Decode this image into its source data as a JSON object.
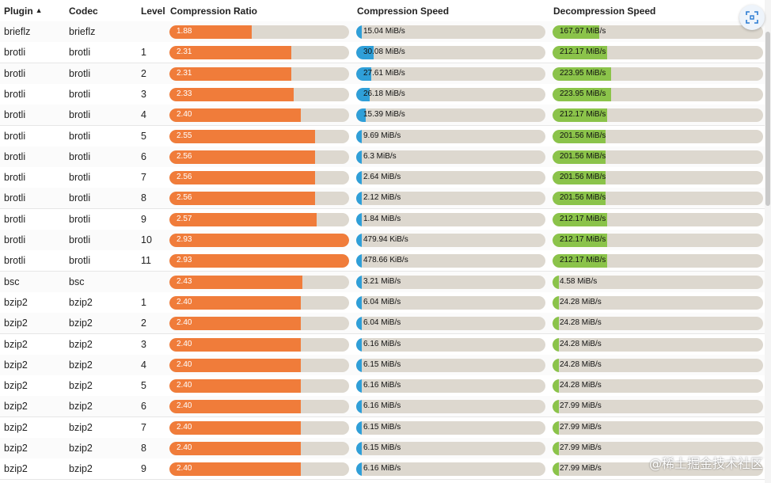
{
  "header": {
    "plugin": "Plugin",
    "codec": "Codec",
    "level": "Level",
    "ratio": "Compression Ratio",
    "cspeed": "Compression Speed",
    "dspeed": "Decompression Speed"
  },
  "colors": {
    "ratio": "#f07c3a",
    "cspeed": "#2f9fd8",
    "dspeed": "#8bc34a",
    "track": "#ddd8cf"
  },
  "rows": [
    {
      "plugin": "brieflz",
      "codec": "brieflz",
      "level": "",
      "ratio": "1.88",
      "ratio_frac": 0.46,
      "cspeed": "15.04 MiB/s",
      "cspeed_frac": 0.02,
      "dspeed": "167.97 MiB/s",
      "dspeed_frac": 0.22
    },
    {
      "plugin": "brotli",
      "codec": "brotli",
      "level": "1",
      "ratio": "2.31",
      "ratio_frac": 0.68,
      "cspeed": "30.08 MiB/s",
      "cspeed_frac": 0.09,
      "dspeed": "212.17 MiB/s",
      "dspeed_frac": 0.26
    },
    {
      "plugin": "brotli",
      "codec": "brotli",
      "level": "2",
      "ratio": "2.31",
      "ratio_frac": 0.68,
      "cspeed": "27.61 MiB/s",
      "cspeed_frac": 0.08,
      "dspeed": "223.95 MiB/s",
      "dspeed_frac": 0.28
    },
    {
      "plugin": "brotli",
      "codec": "brotli",
      "level": "3",
      "ratio": "2.33",
      "ratio_frac": 0.69,
      "cspeed": "26.18 MiB/s",
      "cspeed_frac": 0.07,
      "dspeed": "223.95 MiB/s",
      "dspeed_frac": 0.28
    },
    {
      "plugin": "brotli",
      "codec": "brotli",
      "level": "4",
      "ratio": "2.40",
      "ratio_frac": 0.73,
      "cspeed": "15.39 MiB/s",
      "cspeed_frac": 0.05,
      "dspeed": "212.17 MiB/s",
      "dspeed_frac": 0.26
    },
    {
      "plugin": "brotli",
      "codec": "brotli",
      "level": "5",
      "ratio": "2.55",
      "ratio_frac": 0.81,
      "cspeed": "9.69 MiB/s",
      "cspeed_frac": 0.02,
      "dspeed": "201.56 MiB/s",
      "dspeed_frac": 0.25
    },
    {
      "plugin": "brotli",
      "codec": "brotli",
      "level": "6",
      "ratio": "2.56",
      "ratio_frac": 0.81,
      "cspeed": "6.3 MiB/s",
      "cspeed_frac": 0.02,
      "dspeed": "201.56 MiB/s",
      "dspeed_frac": 0.25
    },
    {
      "plugin": "brotli",
      "codec": "brotli",
      "level": "7",
      "ratio": "2.56",
      "ratio_frac": 0.81,
      "cspeed": "2.64 MiB/s",
      "cspeed_frac": 0.01,
      "dspeed": "201.56 MiB/s",
      "dspeed_frac": 0.25
    },
    {
      "plugin": "brotli",
      "codec": "brotli",
      "level": "8",
      "ratio": "2.56",
      "ratio_frac": 0.81,
      "cspeed": "2.12 MiB/s",
      "cspeed_frac": 0.01,
      "dspeed": "201.56 MiB/s",
      "dspeed_frac": 0.25
    },
    {
      "plugin": "brotli",
      "codec": "brotli",
      "level": "9",
      "ratio": "2.57",
      "ratio_frac": 0.82,
      "cspeed": "1.84 MiB/s",
      "cspeed_frac": 0.01,
      "dspeed": "212.17 MiB/s",
      "dspeed_frac": 0.26
    },
    {
      "plugin": "brotli",
      "codec": "brotli",
      "level": "10",
      "ratio": "2.93",
      "ratio_frac": 1.0,
      "cspeed": "479.94 KiB/s",
      "cspeed_frac": 0.005,
      "dspeed": "212.17 MiB/s",
      "dspeed_frac": 0.26
    },
    {
      "plugin": "brotli",
      "codec": "brotli",
      "level": "11",
      "ratio": "2.93",
      "ratio_frac": 1.0,
      "cspeed": "478.66 KiB/s",
      "cspeed_frac": 0.005,
      "dspeed": "212.17 MiB/s",
      "dspeed_frac": 0.26
    },
    {
      "plugin": "bsc",
      "codec": "bsc",
      "level": "",
      "ratio": "2.43",
      "ratio_frac": 0.74,
      "cspeed": "3.21 MiB/s",
      "cspeed_frac": 0.01,
      "dspeed": "4.58 MiB/s",
      "dspeed_frac": 0.01
    },
    {
      "plugin": "bzip2",
      "codec": "bzip2",
      "level": "1",
      "ratio": "2.40",
      "ratio_frac": 0.73,
      "cspeed": "6.04 MiB/s",
      "cspeed_frac": 0.01,
      "dspeed": "24.28 MiB/s",
      "dspeed_frac": 0.02
    },
    {
      "plugin": "bzip2",
      "codec": "bzip2",
      "level": "2",
      "ratio": "2.40",
      "ratio_frac": 0.73,
      "cspeed": "6.04 MiB/s",
      "cspeed_frac": 0.01,
      "dspeed": "24.28 MiB/s",
      "dspeed_frac": 0.02
    },
    {
      "plugin": "bzip2",
      "codec": "bzip2",
      "level": "3",
      "ratio": "2.40",
      "ratio_frac": 0.73,
      "cspeed": "6.16 MiB/s",
      "cspeed_frac": 0.01,
      "dspeed": "24.28 MiB/s",
      "dspeed_frac": 0.02
    },
    {
      "plugin": "bzip2",
      "codec": "bzip2",
      "level": "4",
      "ratio": "2.40",
      "ratio_frac": 0.73,
      "cspeed": "6.15 MiB/s",
      "cspeed_frac": 0.01,
      "dspeed": "24.28 MiB/s",
      "dspeed_frac": 0.02
    },
    {
      "plugin": "bzip2",
      "codec": "bzip2",
      "level": "5",
      "ratio": "2.40",
      "ratio_frac": 0.73,
      "cspeed": "6.16 MiB/s",
      "cspeed_frac": 0.01,
      "dspeed": "24.28 MiB/s",
      "dspeed_frac": 0.02
    },
    {
      "plugin": "bzip2",
      "codec": "bzip2",
      "level": "6",
      "ratio": "2.40",
      "ratio_frac": 0.73,
      "cspeed": "6.16 MiB/s",
      "cspeed_frac": 0.01,
      "dspeed": "27.99 MiB/s",
      "dspeed_frac": 0.02
    },
    {
      "plugin": "bzip2",
      "codec": "bzip2",
      "level": "7",
      "ratio": "2.40",
      "ratio_frac": 0.73,
      "cspeed": "6.15 MiB/s",
      "cspeed_frac": 0.01,
      "dspeed": "27.99 MiB/s",
      "dspeed_frac": 0.02
    },
    {
      "plugin": "bzip2",
      "codec": "bzip2",
      "level": "8",
      "ratio": "2.40",
      "ratio_frac": 0.73,
      "cspeed": "6.15 MiB/s",
      "cspeed_frac": 0.01,
      "dspeed": "27.99 MiB/s",
      "dspeed_frac": 0.02
    },
    {
      "plugin": "bzip2",
      "codec": "bzip2",
      "level": "9",
      "ratio": "2.40",
      "ratio_frac": 0.73,
      "cspeed": "6.16 MiB/s",
      "cspeed_frac": 0.01,
      "dspeed": "27.99 MiB/s",
      "dspeed_frac": 0.02
    }
  ],
  "watermark": "@稀土掘金技术社区"
}
